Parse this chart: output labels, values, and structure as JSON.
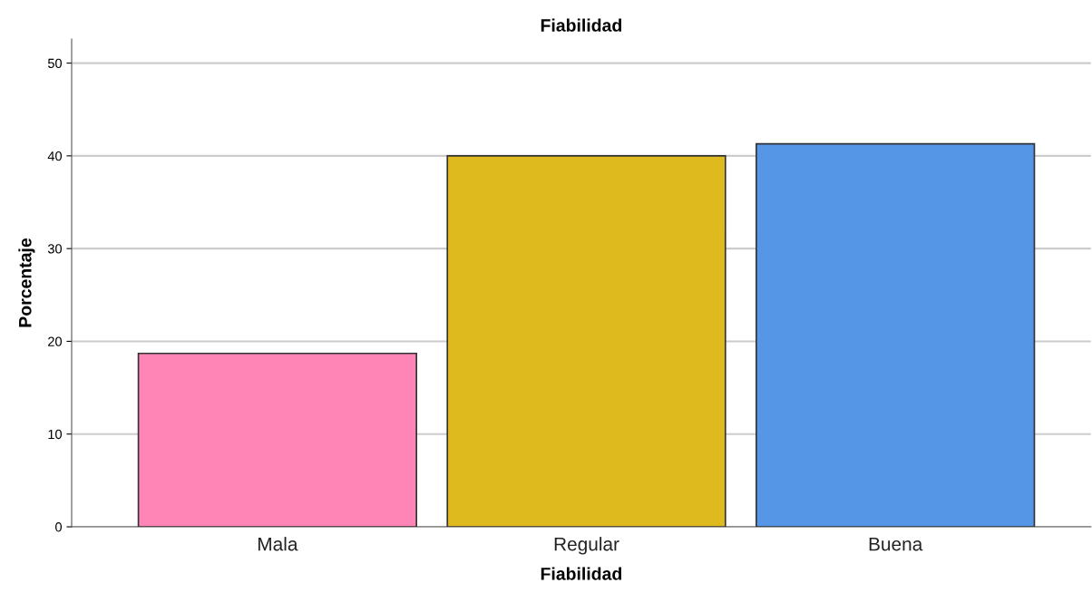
{
  "chart_data": {
    "type": "bar",
    "title": "Fiabilidad",
    "xlabel": "Fiabilidad",
    "ylabel": "Porcentaje",
    "categories": [
      "Mala",
      "Regular",
      "Buena"
    ],
    "values": [
      18.7,
      40.0,
      41.3
    ],
    "colors": [
      "#ff85b7",
      "#dfba1f",
      "#5597e6"
    ],
    "ylim": [
      0,
      52.6
    ],
    "yticks": [
      0,
      10,
      20,
      30,
      40,
      50
    ],
    "grid": "y",
    "legend": false
  }
}
